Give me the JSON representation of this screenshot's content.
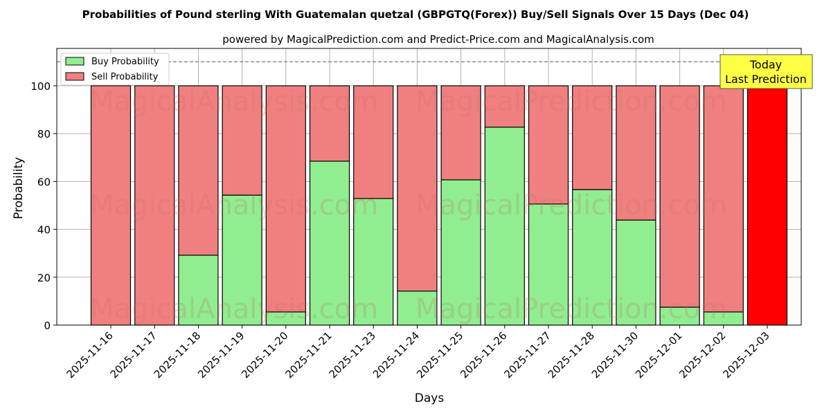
{
  "chart_data": {
    "type": "bar",
    "stacked": true,
    "title": "Probabilities of Pound sterling With Guatemalan quetzal (GBPGTQ(Forex)) Buy/Sell Signals Over 15 Days (Dec 04)",
    "subtitle": "powered by MagicalPrediction.com and Predict-Price.com and MagicalAnalysis.com",
    "xlabel": "Days",
    "ylabel": "Probability",
    "ylim": [
      0,
      115.6
    ],
    "yticks": [
      0,
      20,
      40,
      60,
      80,
      100
    ],
    "grid": true,
    "legend_position": "top-left",
    "reference_line": 110,
    "categories": [
      "2025-11-16",
      "2025-11-17",
      "2025-11-18",
      "2025-11-19",
      "2025-11-20",
      "2025-11-21",
      "2025-11-23",
      "2025-11-24",
      "2025-11-25",
      "2025-11-26",
      "2025-11-27",
      "2025-11-28",
      "2025-11-30",
      "2025-12-01",
      "2025-12-02",
      "2025-12-03"
    ],
    "series": [
      {
        "name": "Buy Probability",
        "color": "#90ee90",
        "values": [
          0,
          0,
          29.2,
          54.3,
          5.5,
          68.5,
          52.9,
          14.2,
          60.7,
          82.7,
          50.6,
          56.6,
          43.9,
          7.5,
          5.5,
          0
        ]
      },
      {
        "name": "Sell Probability",
        "color": "#f08080",
        "values": [
          100,
          100,
          70.8,
          45.7,
          94.5,
          31.5,
          47.1,
          85.8,
          39.3,
          17.3,
          49.4,
          43.4,
          56.1,
          92.5,
          94.5,
          100
        ]
      }
    ],
    "highlight": {
      "index": 15,
      "color": "#ff0000",
      "annotation": [
        "Today",
        "Last Prediction"
      ]
    },
    "watermarks": [
      "MagicalAnalysis.com",
      "MagicalPrediction.com"
    ]
  }
}
